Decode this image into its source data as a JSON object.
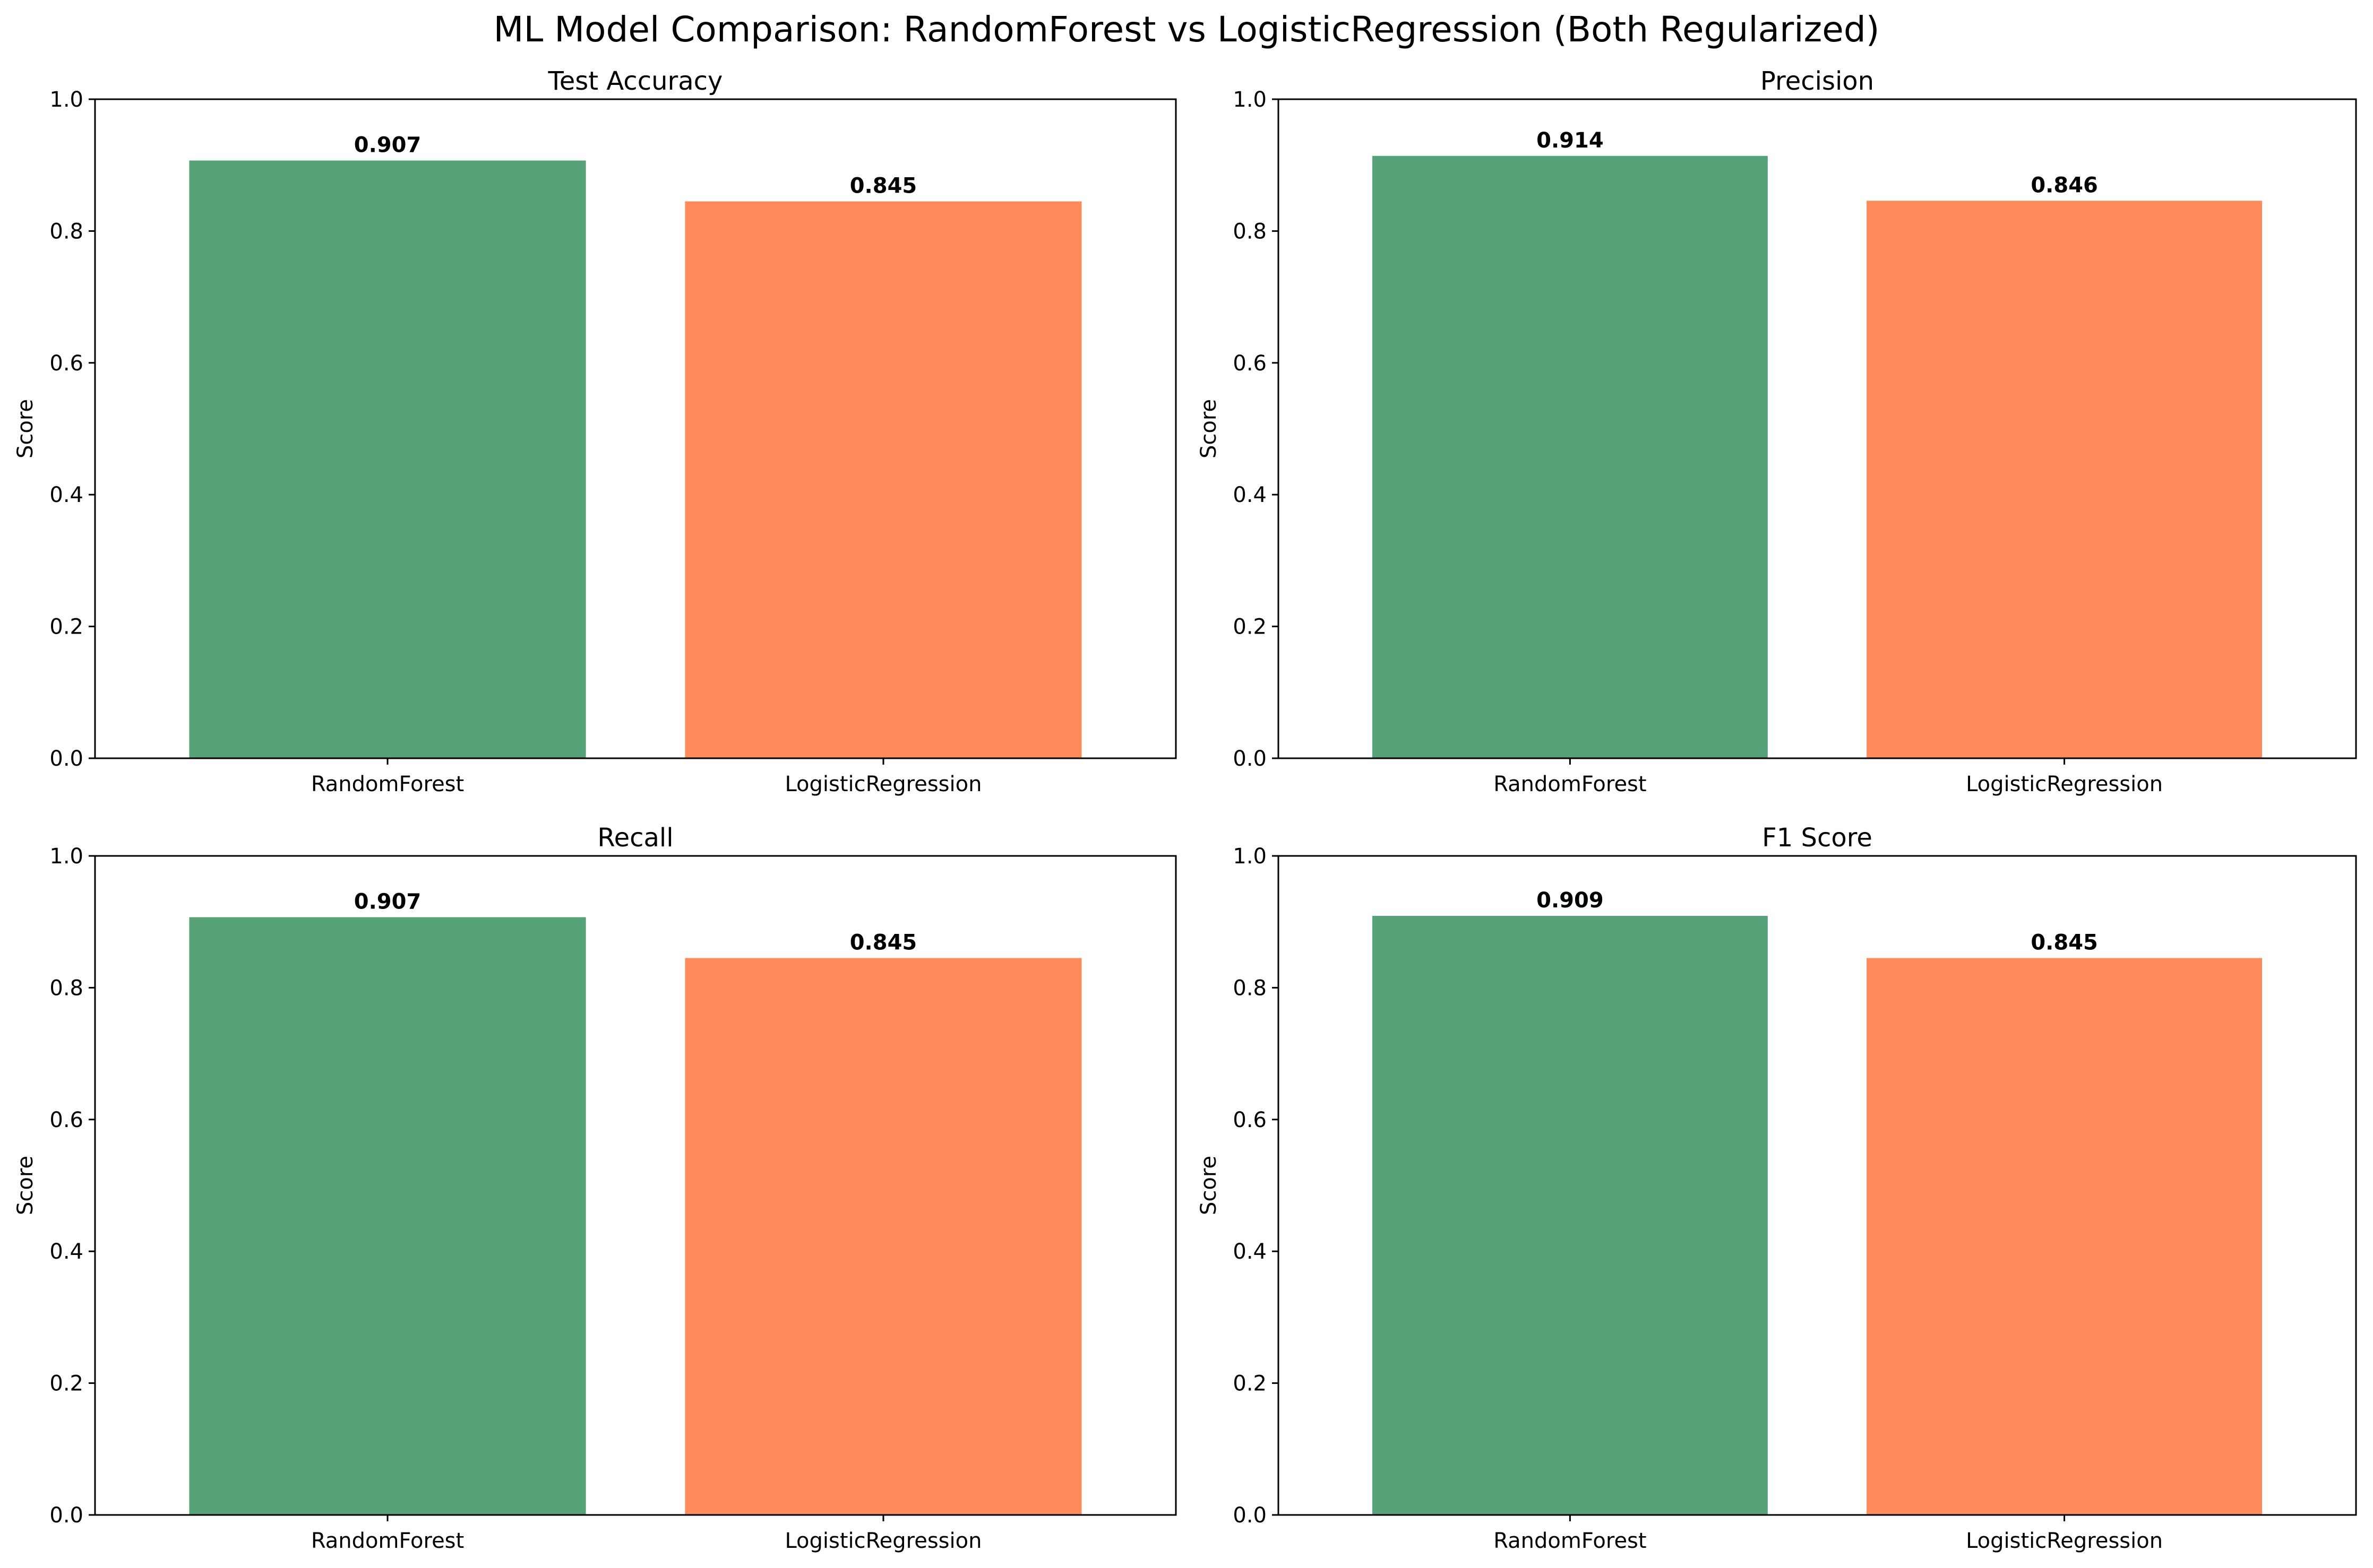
{
  "figure": {
    "title": "ML Model Comparison: RandomForest vs LogisticRegression (Both Regularized)"
  },
  "colors": {
    "RandomForest": "#58a279",
    "LogisticRegression": "#ff8a5d"
  },
  "chart_data": [
    {
      "type": "bar",
      "title": "Test Accuracy",
      "categories": [
        "RandomForest",
        "LogisticRegression"
      ],
      "values": [
        0.907,
        0.845
      ],
      "value_labels": [
        "0.907",
        "0.845"
      ],
      "xlabel": "",
      "ylabel": "Score",
      "ylim": [
        0,
        1.0
      ],
      "yticks": [
        "0.0",
        "0.2",
        "0.4",
        "0.6",
        "0.8",
        "1.0"
      ],
      "grid": false
    },
    {
      "type": "bar",
      "title": "Precision",
      "categories": [
        "RandomForest",
        "LogisticRegression"
      ],
      "values": [
        0.914,
        0.846
      ],
      "value_labels": [
        "0.914",
        "0.846"
      ],
      "xlabel": "",
      "ylabel": "Score",
      "ylim": [
        0,
        1.0
      ],
      "yticks": [
        "0.0",
        "0.2",
        "0.4",
        "0.6",
        "0.8",
        "1.0"
      ],
      "grid": false
    },
    {
      "type": "bar",
      "title": "Recall",
      "categories": [
        "RandomForest",
        "LogisticRegression"
      ],
      "values": [
        0.907,
        0.845
      ],
      "value_labels": [
        "0.907",
        "0.845"
      ],
      "xlabel": "",
      "ylabel": "Score",
      "ylim": [
        0,
        1.0
      ],
      "yticks": [
        "0.0",
        "0.2",
        "0.4",
        "0.6",
        "0.8",
        "1.0"
      ],
      "grid": false
    },
    {
      "type": "bar",
      "title": "F1 Score",
      "categories": [
        "RandomForest",
        "LogisticRegression"
      ],
      "values": [
        0.909,
        0.845
      ],
      "value_labels": [
        "0.909",
        "0.845"
      ],
      "xlabel": "",
      "ylabel": "Score",
      "ylim": [
        0,
        1.0
      ],
      "yticks": [
        "0.0",
        "0.2",
        "0.4",
        "0.6",
        "0.8",
        "1.0"
      ],
      "grid": false
    }
  ]
}
